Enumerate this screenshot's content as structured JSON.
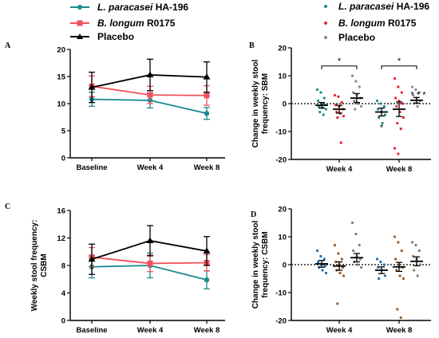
{
  "legend_left": [
    {
      "name_italic": "L. paracasei",
      "name_rest": " HA-196",
      "color": "#1a8a8f",
      "marker": "circle"
    },
    {
      "name_italic": "B. longum",
      "name_rest": " R0175",
      "color": "#f0505a",
      "marker": "square"
    },
    {
      "name_italic": "",
      "name_rest": "Placebo",
      "color": "#000000",
      "marker": "triangle"
    }
  ],
  "legend_right": [
    {
      "name_italic": "L. paracasei",
      "name_rest": " HA-196",
      "color": "#1a8a8f"
    },
    {
      "name_italic": "B. longum",
      "name_rest": " R0175",
      "color": "#e8202a"
    },
    {
      "name_italic": "",
      "name_rest": "Placebo",
      "color": "#8a8a8a"
    }
  ],
  "panel_labels": {
    "A": "A",
    "B": "B",
    "C": "C",
    "D": "D"
  },
  "colors": {
    "paracasei": "#1a8a8f",
    "longum": "#f0505a",
    "placebo": "#000000",
    "placebo_dots": "#8a8a8a",
    "longum_dots": "#e8202a",
    "paracasei_dots_D": "#1f6fb0",
    "longum_dots_D": "#9a5a28",
    "placebo_dots_D": "#8a7a60"
  },
  "chart_data": [
    {
      "id": "A",
      "type": "line",
      "categories": [
        "Baseline",
        "Week 4",
        "Week 8"
      ],
      "ylim": [
        0,
        20
      ],
      "yticks": [
        0,
        5,
        10,
        15,
        20
      ],
      "ylabel": "",
      "series": [
        {
          "name": "L. paracasei HA-196",
          "values": [
            10.8,
            10.6,
            8.2
          ],
          "err": [
            1.3,
            1.4,
            1.1
          ]
        },
        {
          "name": "B. longum R0175",
          "values": [
            13.2,
            11.6,
            11.5
          ],
          "err": [
            1.9,
            1.6,
            1.8
          ]
        },
        {
          "name": "Placebo",
          "values": [
            13.0,
            15.3,
            14.9
          ],
          "err": [
            2.8,
            2.9,
            2.8
          ]
        }
      ]
    },
    {
      "id": "B",
      "type": "scatter",
      "categories": [
        "Week 4",
        "Week 8"
      ],
      "ylim": [
        -20,
        20
      ],
      "yticks": [
        -20,
        -10,
        0,
        10,
        20
      ],
      "ylabel": "Change in weekly stool frequency: SBM",
      "groups": [
        {
          "category": "Week 4",
          "series": "L. paracasei HA-196",
          "mean": -0.6,
          "err": 1.0,
          "points": [
            5,
            4,
            2,
            1,
            0,
            -0.5,
            -1,
            -1.5,
            -2,
            -3,
            -4
          ]
        },
        {
          "category": "Week 4",
          "series": "B. longum R0175",
          "mean": -2.0,
          "err": 1.4,
          "points": [
            3,
            2.5,
            0.5,
            -0.5,
            -1,
            -2,
            -3,
            -3.5,
            -4.5,
            -5,
            -14
          ]
        },
        {
          "category": "Week 4",
          "series": "Placebo",
          "mean": 2.0,
          "err": 1.6,
          "points": [
            10,
            8,
            6,
            4,
            3,
            2,
            1,
            0,
            -1,
            -2
          ]
        },
        {
          "category": "Week 8",
          "series": "L. paracasei HA-196",
          "mean": -3.0,
          "err": 1.4,
          "points": [
            1,
            0,
            -1,
            -2,
            -3,
            -4,
            -5,
            -7
          ]
        },
        {
          "category": "Week 8",
          "series": "B. longum R0175",
          "mean": -2.0,
          "err": 2.6,
          "points": [
            9,
            6,
            4,
            2,
            1,
            0,
            -1,
            -3,
            -5,
            -7,
            -9,
            -16,
            -18
          ]
        },
        {
          "category": "Week 8",
          "series": "Placebo",
          "mean": 1.2,
          "err": 1.0,
          "points": [
            6,
            5,
            4,
            3,
            2,
            1,
            0,
            -1
          ]
        }
      ],
      "annotations": [
        "*",
        "*",
        "*",
        "* * *"
      ]
    },
    {
      "id": "C",
      "type": "line",
      "categories": [
        "Baseline",
        "Week 4",
        "Week 8"
      ],
      "ylim": [
        0,
        16
      ],
      "yticks": [
        0,
        4,
        8,
        12,
        16
      ],
      "ylabel": "Weekly stool frequency: CSBM",
      "series": [
        {
          "name": "L. paracasei HA-196",
          "values": [
            7.8,
            8.0,
            5.9
          ],
          "err": [
            1.6,
            1.8,
            1.3
          ]
        },
        {
          "name": "B. longum R0175",
          "values": [
            9.2,
            8.3,
            8.4
          ],
          "err": [
            1.4,
            1.2,
            1.2
          ]
        },
        {
          "name": "Placebo",
          "values": [
            8.9,
            11.6,
            10.1
          ],
          "err": [
            2.2,
            2.2,
            2.1
          ]
        }
      ]
    },
    {
      "id": "D",
      "type": "scatter",
      "categories": [
        "Week 4",
        "Week 8"
      ],
      "ylim": [
        -20,
        20
      ],
      "yticks": [
        -20,
        -10,
        0,
        10,
        20
      ],
      "ylabel": "Change in weekly stool frequency: CSBM",
      "groups": [
        {
          "category": "Week 4",
          "series": "L. paracasei HA-196",
          "mean": 0.3,
          "err": 1.2,
          "points": [
            5,
            3,
            2,
            1,
            0,
            -0.5,
            -1,
            -2,
            -3
          ]
        },
        {
          "category": "Week 4",
          "series": "B. longum R0175",
          "mean": -0.5,
          "err": 1.5,
          "points": [
            7,
            4,
            2,
            1,
            0,
            -1,
            -2,
            -3,
            -4,
            -14
          ]
        },
        {
          "category": "Week 4",
          "series": "Placebo",
          "mean": 2.5,
          "err": 1.5,
          "points": [
            15,
            11,
            7,
            5,
            3,
            2,
            1,
            0,
            -1
          ]
        },
        {
          "category": "Week 8",
          "series": "L. paracasei HA-196",
          "mean": -2.0,
          "err": 1.2,
          "points": [
            2,
            1,
            0,
            -1,
            -2,
            -4,
            -5
          ]
        },
        {
          "category": "Week 8",
          "series": "B. longum R0175",
          "mean": -0.8,
          "err": 1.6,
          "points": [
            10,
            8,
            5,
            2,
            0,
            -1,
            -2,
            -4,
            -5,
            -16,
            -19
          ]
        },
        {
          "category": "Week 8",
          "series": "Placebo",
          "mean": 1.2,
          "err": 1.6,
          "points": [
            8,
            7,
            5,
            3,
            2,
            0,
            -2,
            -4
          ]
        }
      ],
      "annotations": []
    }
  ]
}
